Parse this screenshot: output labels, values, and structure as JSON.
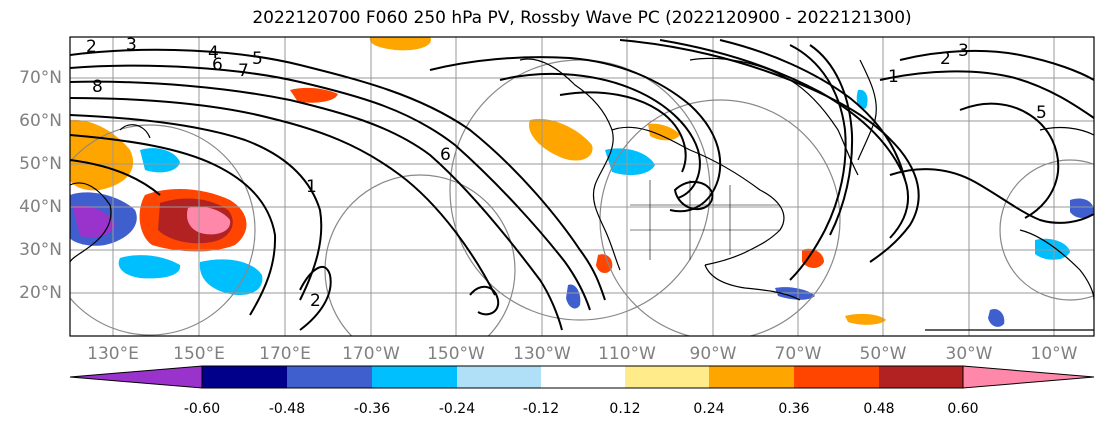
{
  "title": "2022120700 F060 250 hPa PV, Rossby Wave PC (2022120900 - 2022121300)",
  "lat_labels": [
    "70°N",
    "60°N",
    "50°N",
    "40°N",
    "30°N",
    "20°N"
  ],
  "lon_labels": [
    "130°E",
    "150°E",
    "170°E",
    "170°W",
    "150°W",
    "130°W",
    "110°W",
    "90°W",
    "70°W",
    "50°W",
    "30°W",
    "10°W"
  ],
  "colorbar": {
    "labels": [
      "-0.60",
      "-0.48",
      "-0.36",
      "-0.24",
      "-0.12",
      "0.12",
      "0.24",
      "0.36",
      "0.48",
      "0.60"
    ],
    "colors": [
      "#9933cc",
      "#00008b",
      "#3f5fcf",
      "#00bfff",
      "#b0e0f8",
      "#ffffff",
      "#ffeb8a",
      "#ffa500",
      "#ff4500",
      "#b22222",
      "#ff88aa"
    ]
  },
  "contour_labels": [
    "2",
    "3",
    "4",
    "5",
    "6",
    "7",
    "8",
    "1",
    "2",
    "3",
    "1",
    "5",
    "6",
    "2"
  ]
}
